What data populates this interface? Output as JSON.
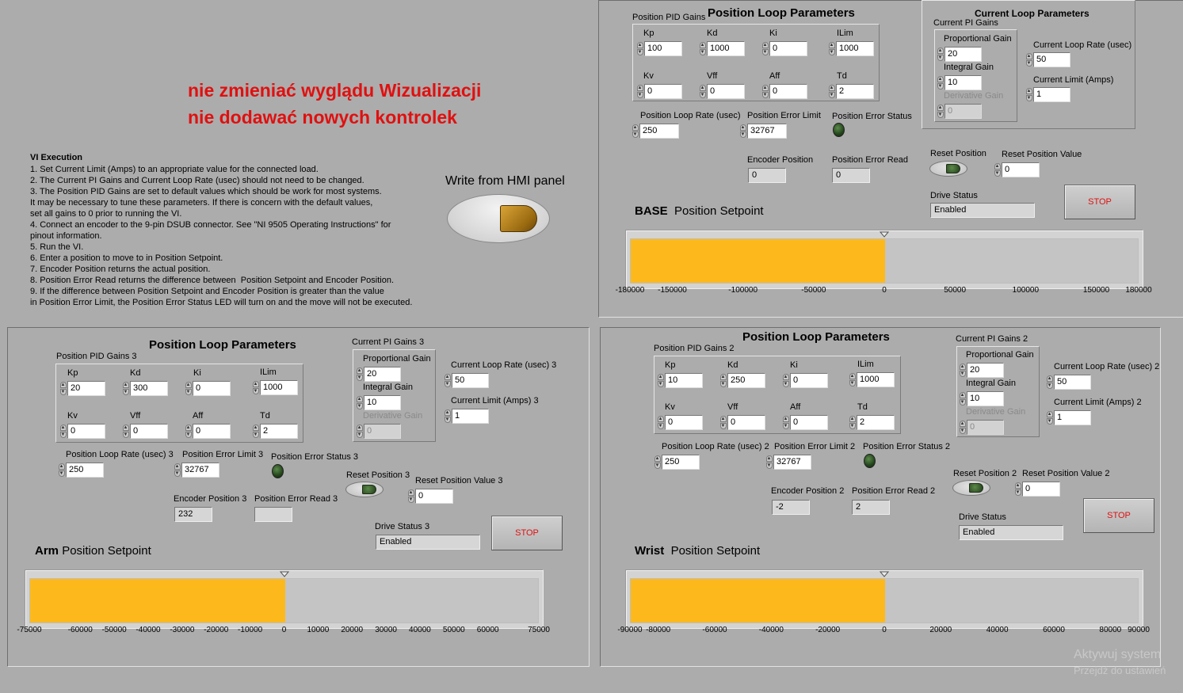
{
  "header": {
    "warning_line1": "nie zmieniać wyglądu Wizualizacji",
    "warning_line2": "nie dodawać nowych kontrolek",
    "write_hmi_label": "Write from HMI panel"
  },
  "instructions": {
    "title": "VI Execution",
    "lines": [
      "1. Set Current Limit (Amps) to an appropriate value for the connected load.",
      "2. The Current PI Gains and Current Loop Rate (usec) should not need to be changed.",
      "3. The Position PID Gains are set to default values which should be work for most systems.",
      "It may be necessary to tune these parameters. If there is concern with the default values,",
      "set all gains to 0 prior to running the VI.",
      "4. Connect an encoder to the 9-pin DSUB connector. See \"NI 9505 Operating Instructions\" for",
      "pinout information.",
      "5. Run the VI.",
      "6. Enter a position to move to in Position Setpoint.",
      "7. Encoder Position returns the actual position.",
      "8. Position Error Read returns the difference between  Position Setpoint and Encoder Position.",
      "9. If the difference between Position Setpoint and Encoder Position is greater than the value",
      "in Position Error Limit, the Position Error Status LED will turn on and the move will not be executed."
    ]
  },
  "base": {
    "pid_gains_label": "Position PID Gains",
    "section_title": "Position Loop Parameters",
    "kp_label": "Kp",
    "kp": "100",
    "kd_label": "Kd",
    "kd": "1000",
    "ki_label": "Ki",
    "ki": "0",
    "ilim_label": "ILim",
    "ilim": "1000",
    "kv_label": "Kv",
    "kv": "0",
    "vff_label": "Vff",
    "vff": "0",
    "aff_label": "Aff",
    "aff": "0",
    "td_label": "Td",
    "td": "2",
    "loop_rate_label": "Position Loop  Rate (usec)",
    "loop_rate": "250",
    "err_limit_label": "Position Error Limit",
    "err_limit": "32767",
    "err_status_label": "Position Error Status",
    "encoder_pos_label": "Encoder Position",
    "encoder_pos": "0",
    "err_read_label": "Position Error Read",
    "err_read": "0",
    "reset_pos_label": "Reset Position",
    "reset_val_label": "Reset Position Value",
    "reset_val": "0",
    "drive_status_label": "Drive Status",
    "drive_status": "Enabled",
    "stop_label": "STOP",
    "current_title": "Current Loop Parameters",
    "pi_gains_label": "Current PI Gains",
    "prop_gain_label": "Proportional Gain",
    "prop_gain": "20",
    "int_gain_label": "Integral Gain",
    "int_gain": "10",
    "deriv_gain_label": "Derivative Gain",
    "deriv_gain": "0",
    "cur_rate_label": "Current Loop Rate (usec)",
    "cur_rate": "50",
    "cur_limit_label": "Current Limit (Amps)",
    "cur_limit": "1",
    "setpoint_name": "BASE",
    "setpoint_label": "Position Setpoint",
    "setpoint_value": 0,
    "ticks": [
      "-180000",
      "-150000",
      "-100000",
      "-50000",
      "0",
      "50000",
      "100000",
      "150000",
      "180000"
    ]
  },
  "arm": {
    "section_title": "Position Loop Parameters",
    "pid_gains_label": "Position PID Gains 3",
    "kp_label": "Kp",
    "kp": "20",
    "kd_label": "Kd",
    "kd": "300",
    "ki_label": "Ki",
    "ki": "0",
    "ilim_label": "ILim",
    "ilim": "1000",
    "kv_label": "Kv",
    "kv": "0",
    "vff_label": "Vff",
    "vff": "0",
    "aff_label": "Aff",
    "aff": "0",
    "td_label": "Td",
    "td": "2",
    "loop_rate_label": "Position Loop  Rate (usec) 3",
    "loop_rate": "250",
    "err_limit_label": "Position Error Limit 3",
    "err_limit": "32767",
    "err_status_label": "Position Error Status 3",
    "encoder_pos_label": "Encoder Position 3",
    "encoder_pos": "232",
    "err_read_label": "Position Error Read 3",
    "err_read": "",
    "reset_pos_label": "Reset Position 3",
    "reset_val_label": "Reset Position Value 3",
    "reset_val": "0",
    "drive_status_label": "Drive Status 3",
    "drive_status": "Enabled",
    "stop_label": "STOP",
    "pi_gains_label": "Current PI Gains 3",
    "prop_gain_label": "Proportional Gain",
    "prop_gain": "20",
    "int_gain_label": "Integral Gain",
    "int_gain": "10",
    "deriv_gain_label": "Derivative Gain",
    "deriv_gain": "0",
    "cur_rate_label": "Current Loop Rate (usec) 3",
    "cur_rate": "50",
    "cur_limit_label": "Current Limit (Amps) 3",
    "cur_limit": "1",
    "setpoint_name": "Arm",
    "setpoint_label": "Position Setpoint",
    "setpoint_value": 0,
    "ticks": [
      "-75000",
      "-60000",
      "-50000",
      "-40000",
      "-30000",
      "-20000",
      "-10000",
      "0",
      "10000",
      "20000",
      "30000",
      "40000",
      "50000",
      "60000",
      "75000"
    ]
  },
  "wrist": {
    "section_title": "Position Loop Parameters",
    "pid_gains_label": "Position PID Gains 2",
    "kp_label": "Kp",
    "kp": "10",
    "kd_label": "Kd",
    "kd": "250",
    "ki_label": "Ki",
    "ki": "0",
    "ilim_label": "ILim",
    "ilim": "1000",
    "kv_label": "Kv",
    "kv": "0",
    "vff_label": "Vff",
    "vff": "0",
    "aff_label": "Aff",
    "aff": "0",
    "td_label": "Td",
    "td": "2",
    "loop_rate_label": "Position Loop  Rate (usec) 2",
    "loop_rate": "250",
    "err_limit_label": "Position Error Limit 2",
    "err_limit": "32767",
    "err_status_label": "Position Error Status 2",
    "encoder_pos_label": "Encoder Position 2",
    "encoder_pos": "-2",
    "err_read_label": "Position Error Read 2",
    "err_read": "2",
    "reset_pos_label": "Reset Position 2",
    "reset_val_label": "Reset Position Value 2",
    "reset_val": "0",
    "drive_status_label": "Drive Status",
    "drive_status": "Enabled",
    "stop_label": "STOP",
    "pi_gains_label": "Current PI Gains 2",
    "prop_gain_label": "Proportional Gain",
    "prop_gain": "20",
    "int_gain_label": "Integral Gain",
    "int_gain": "10",
    "deriv_gain_label": "Derivative Gain",
    "deriv_gain": "0",
    "cur_rate_label": "Current Loop Rate (usec) 2",
    "cur_rate": "50",
    "cur_limit_label": "Current Limit (Amps) 2",
    "cur_limit": "1",
    "setpoint_name": "Wrist",
    "setpoint_label": "Position Setpoint",
    "setpoint_value": 0,
    "ticks": [
      "-90000",
      "-80000",
      "-60000",
      "-40000",
      "-20000",
      "0",
      "20000",
      "40000",
      "60000",
      "80000",
      "90000"
    ]
  },
  "os_watermark": {
    "line1": "Aktywuj system",
    "line2": "Przejdź do ustawień"
  }
}
